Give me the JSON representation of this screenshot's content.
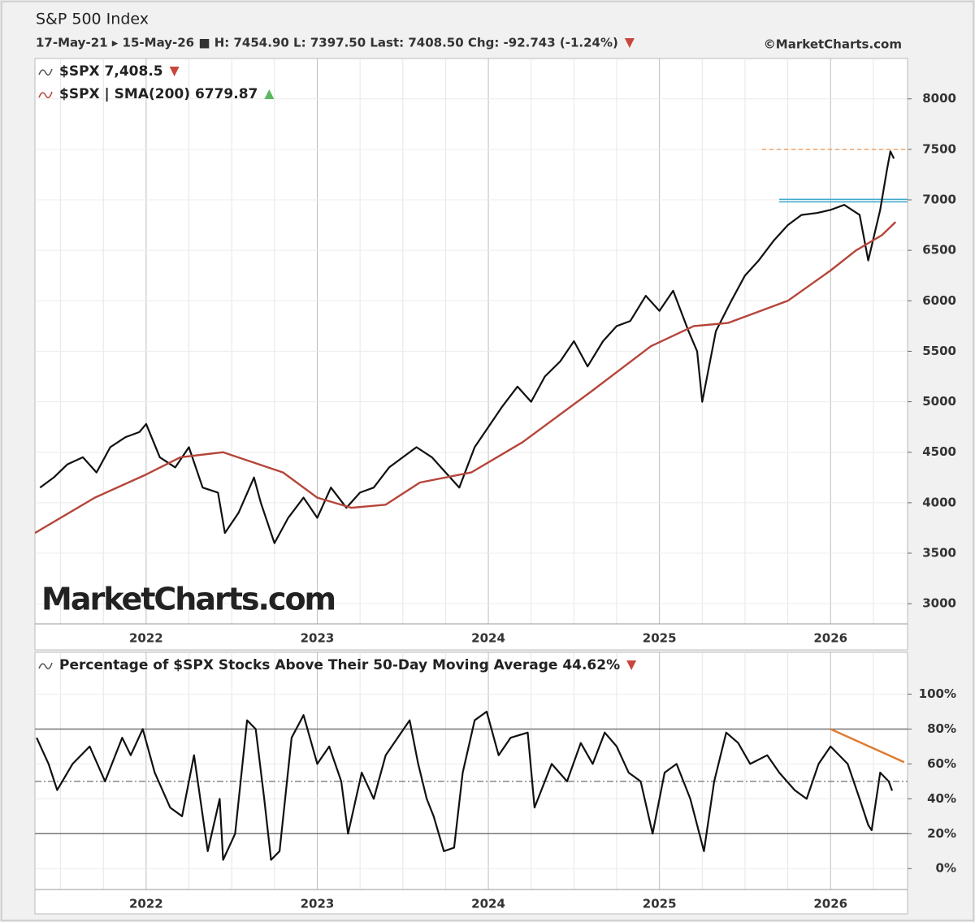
{
  "chart_data": [
    {
      "type": "line",
      "title": "S&P 500 Index",
      "subtitle": "17-May-21 ▸ 15-May-26 ■ H: 7454.90 L: 7397.50 Last: 7408.50 Chg: -92.743 (-1.24%)",
      "credit": "©MarketCharts.com",
      "watermark": "MarketCharts.com",
      "xlim": [
        2021.35,
        2026.45
      ],
      "xticks": [
        2022,
        2023,
        2024,
        2025,
        2026
      ],
      "x_minor_ticks": [
        2021.5,
        2021.75,
        2022.25,
        2022.5,
        2022.75,
        2023.25,
        2023.5,
        2023.75,
        2024.25,
        2024.5,
        2024.75,
        2025.25,
        2025.5,
        2025.75,
        2026.25
      ],
      "ylim": [
        2800,
        8400
      ],
      "yticks": [
        3000,
        3500,
        4000,
        4500,
        5000,
        5500,
        6000,
        6500,
        7000,
        7500,
        8000
      ],
      "grid": true,
      "series": [
        {
          "name": "$SPX 7,408.5",
          "color": "#111111",
          "x": [
            2021.38,
            2021.46,
            2021.54,
            2021.63,
            2021.71,
            2021.79,
            2021.88,
            2021.96,
            2022.0,
            2022.08,
            2022.17,
            2022.25,
            2022.33,
            2022.42,
            2022.46,
            2022.54,
            2022.63,
            2022.67,
            2022.75,
            2022.83,
            2022.92,
            2023.0,
            2023.08,
            2023.17,
            2023.25,
            2023.33,
            2023.42,
            2023.5,
            2023.58,
            2023.67,
            2023.75,
            2023.83,
            2023.92,
            2024.0,
            2024.08,
            2024.17,
            2024.25,
            2024.33,
            2024.42,
            2024.5,
            2024.58,
            2024.67,
            2024.75,
            2024.83,
            2024.92,
            2025.0,
            2025.08,
            2025.17,
            2025.22,
            2025.25,
            2025.33,
            2025.42,
            2025.5,
            2025.58,
            2025.67,
            2025.75,
            2025.83,
            2025.92,
            2026.0,
            2026.08,
            2026.17,
            2026.22,
            2026.29,
            2026.33,
            2026.35,
            2026.37
          ],
          "values": [
            4150,
            4250,
            4380,
            4450,
            4300,
            4550,
            4650,
            4700,
            4780,
            4450,
            4350,
            4550,
            4150,
            4100,
            3700,
            3900,
            4250,
            4000,
            3600,
            3850,
            4050,
            3850,
            4150,
            3950,
            4100,
            4150,
            4350,
            4450,
            4550,
            4450,
            4300,
            4150,
            4550,
            4750,
            4950,
            5150,
            5000,
            5250,
            5400,
            5600,
            5350,
            5600,
            5750,
            5800,
            6050,
            5900,
            6100,
            5700,
            5500,
            5000,
            5700,
            6000,
            6250,
            6400,
            6600,
            6750,
            6850,
            6870,
            6900,
            6950,
            6850,
            6400,
            6900,
            7300,
            7480,
            7408.5
          ]
        },
        {
          "name": "$SPX | SMA(200) 6779.87",
          "color": "#b5453a",
          "x": [
            2021.35,
            2021.7,
            2022.0,
            2022.2,
            2022.45,
            2022.8,
            2023.0,
            2023.2,
            2023.4,
            2023.6,
            2023.9,
            2024.2,
            2024.6,
            2024.95,
            2025.2,
            2025.4,
            2025.75,
            2026.0,
            2026.15,
            2026.3,
            2026.38
          ],
          "values": [
            3700,
            4050,
            4280,
            4450,
            4500,
            4300,
            4050,
            3950,
            3980,
            4200,
            4300,
            4600,
            5100,
            5550,
            5750,
            5780,
            6000,
            6300,
            6500,
            6650,
            6780
          ]
        }
      ],
      "ref_lines": [
        {
          "value": 7500,
          "from": 2025.6,
          "color": "#f0a060",
          "dash": "5,4"
        },
        {
          "value": 6980,
          "from": 2025.7,
          "color": "#3aa8c8"
        },
        {
          "value": 7005,
          "from": 2025.7,
          "color": "#3aa8c8"
        }
      ]
    },
    {
      "type": "line",
      "xlim": [
        2021.35,
        2026.45
      ],
      "xticks": [
        2022,
        2023,
        2024,
        2025,
        2026
      ],
      "x_minor_ticks": [
        2021.5,
        2021.75,
        2022.25,
        2022.5,
        2022.75,
        2023.25,
        2023.5,
        2023.75,
        2024.25,
        2024.5,
        2024.75,
        2025.25,
        2025.5,
        2025.75,
        2026.25
      ],
      "ylim": [
        -12,
        124
      ],
      "yticks": [
        {
          "value": 0,
          "label": "0%"
        },
        {
          "value": 20,
          "label": "20%"
        },
        {
          "value": 40,
          "label": "40%"
        },
        {
          "value": 60,
          "label": "60%"
        },
        {
          "value": 80,
          "label": "80%"
        },
        {
          "value": 100,
          "label": "100%"
        }
      ],
      "grid": true,
      "series": [
        {
          "name": "Percentage of $SPX Stocks Above Their 50-Day Moving Average 44.62%",
          "color": "#111111",
          "x": [
            2021.36,
            2021.43,
            2021.48,
            2021.57,
            2021.67,
            2021.76,
            2021.86,
            2021.91,
            2021.98,
            2022.05,
            2022.14,
            2022.21,
            2022.28,
            2022.36,
            2022.43,
            2022.45,
            2022.52,
            2022.59,
            2022.64,
            2022.69,
            2022.73,
            2022.78,
            2022.85,
            2022.92,
            2023.0,
            2023.07,
            2023.14,
            2023.18,
            2023.26,
            2023.33,
            2023.4,
            2023.47,
            2023.54,
            2023.59,
            2023.64,
            2023.68,
            2023.74,
            2023.8,
            2023.85,
            2023.92,
            2023.99,
            2024.06,
            2024.13,
            2024.23,
            2024.27,
            2024.37,
            2024.46,
            2024.54,
            2024.61,
            2024.68,
            2024.75,
            2024.82,
            2024.89,
            2024.96,
            2025.03,
            2025.1,
            2025.18,
            2025.22,
            2025.26,
            2025.32,
            2025.39,
            2025.46,
            2025.53,
            2025.63,
            2025.7,
            2025.79,
            2025.86,
            2025.93,
            2026.0,
            2026.1,
            2026.17,
            2026.22,
            2026.24,
            2026.29,
            2026.34,
            2026.36
          ],
          "values": [
            75,
            60,
            45,
            60,
            70,
            50,
            75,
            65,
            80,
            55,
            35,
            30,
            65,
            10,
            40,
            5,
            20,
            85,
            80,
            40,
            5,
            10,
            75,
            88,
            60,
            70,
            50,
            20,
            55,
            40,
            65,
            75,
            85,
            60,
            40,
            30,
            10,
            12,
            55,
            85,
            90,
            65,
            75,
            78,
            35,
            60,
            50,
            72,
            60,
            78,
            70,
            55,
            50,
            20,
            55,
            60,
            40,
            25,
            10,
            50,
            78,
            72,
            60,
            65,
            55,
            45,
            40,
            60,
            70,
            60,
            40,
            25,
            22,
            55,
            50,
            44.62
          ]
        }
      ],
      "ref_lines": [
        {
          "value": 20,
          "color": "#777777"
        },
        {
          "value": 80,
          "color": "#777777"
        },
        {
          "value": 50,
          "color": "#888888",
          "dash": "8,3,2,3"
        }
      ],
      "trend_lines": [
        {
          "x": [
            2026.0,
            2026.43
          ],
          "values": [
            80,
            61
          ],
          "color": "#e07b30"
        }
      ]
    }
  ]
}
